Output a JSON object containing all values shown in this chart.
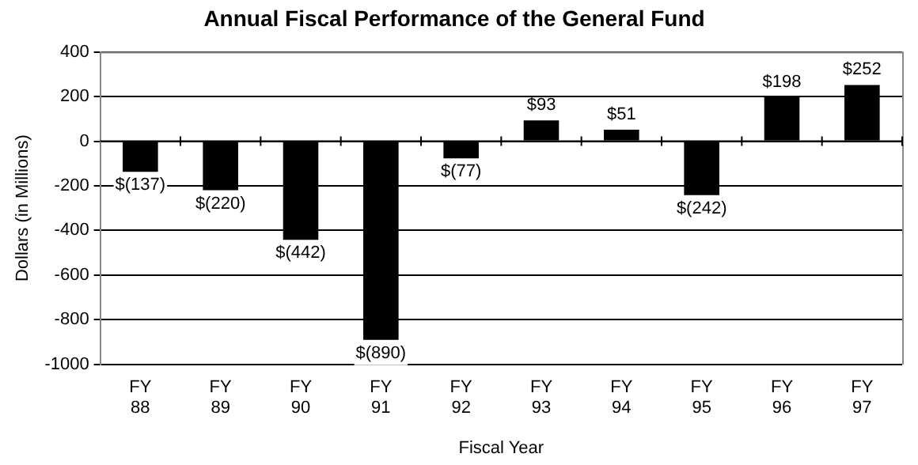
{
  "chart_data": {
    "type": "bar",
    "title": "Annual Fiscal Performance of the General Fund",
    "xlabel": "Fiscal Year",
    "ylabel": "Dollars (in Millions)",
    "categories": [
      "FY 88",
      "FY 89",
      "FY 90",
      "FY 91",
      "FY 92",
      "FY 93",
      "FY 94",
      "FY 95",
      "FY 96",
      "FY 97"
    ],
    "values": [
      -137,
      -220,
      -442,
      -890,
      -77,
      93,
      51,
      -242,
      198,
      252
    ],
    "value_labels": [
      "$(137)",
      "$(220)",
      "$(442)",
      "$(890)",
      "$(77)",
      "$93",
      "$51",
      "$(242)",
      "$198",
      "$252"
    ],
    "color": "#000000",
    "ylim": [
      -1000,
      400
    ],
    "yticks": [
      -1000,
      -800,
      -600,
      -400,
      -200,
      0,
      200,
      400
    ],
    "grid": "y",
    "legend": false
  }
}
